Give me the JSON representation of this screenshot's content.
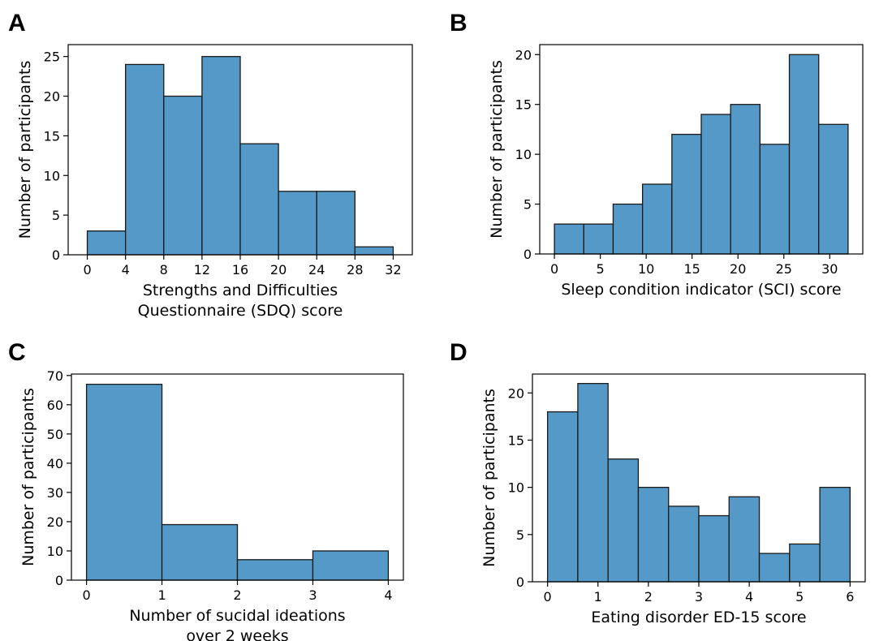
{
  "chart_data": [
    {
      "panel": "A",
      "type": "bar",
      "bin_edges": [
        0,
        4,
        8,
        12,
        16,
        20,
        24,
        28,
        32
      ],
      "values": [
        3,
        24,
        20,
        25,
        14,
        8,
        8,
        1
      ],
      "xlabel": [
        "Strengths and Difficulties",
        "Questionnaire (SDQ) score"
      ],
      "ylabel": "Number of participants",
      "xticks": [
        0,
        4,
        8,
        12,
        16,
        20,
        24,
        28,
        32
      ],
      "yticks": [
        0,
        5,
        10,
        15,
        20,
        25
      ],
      "xlim": [
        -2,
        34
      ],
      "ylim": [
        0,
        26.5
      ],
      "color": "#5499c7"
    },
    {
      "panel": "B",
      "type": "bar",
      "bin_edges": [
        0,
        3.2,
        6.4,
        9.6,
        12.8,
        16,
        19.2,
        22.4,
        25.6,
        28.8,
        32
      ],
      "values": [
        3,
        3,
        5,
        7,
        12,
        14,
        15,
        11,
        20,
        13
      ],
      "xlabel": [
        "Sleep condition indicator (SCI) score"
      ],
      "ylabel": "Number of participants",
      "xticks": [
        0,
        5,
        10,
        15,
        20,
        25,
        30
      ],
      "yticks": [
        0,
        5,
        10,
        15,
        20
      ],
      "xlim": [
        -1.6,
        33.6
      ],
      "ylim": [
        0,
        21
      ],
      "color": "#5499c7"
    },
    {
      "panel": "C",
      "type": "bar",
      "bin_edges": [
        0,
        1,
        2,
        3,
        4
      ],
      "values": [
        67,
        19,
        7,
        10
      ],
      "xlabel": [
        "Number of sucidal ideations",
        "over 2 weeks"
      ],
      "ylabel": "Number of participants",
      "xticks": [
        0,
        1,
        2,
        3,
        4
      ],
      "yticks": [
        0,
        10,
        20,
        30,
        40,
        50,
        60,
        70
      ],
      "xlim": [
        -0.2,
        4.2
      ],
      "ylim": [
        0,
        70.5
      ],
      "color": "#5499c7"
    },
    {
      "panel": "D",
      "type": "bar",
      "bin_edges": [
        0,
        0.6,
        1.2,
        1.8,
        2.4,
        3.0,
        3.6,
        4.2,
        4.8,
        5.4,
        6.0
      ],
      "values": [
        18,
        21,
        13,
        10,
        8,
        7,
        9,
        3,
        4,
        10
      ],
      "xlabel": [
        "Eating disorder ED-15 score"
      ],
      "ylabel": "Number of participants",
      "xticks": [
        0,
        1,
        2,
        3,
        4,
        5,
        6
      ],
      "yticks": [
        0,
        5,
        10,
        15,
        20
      ],
      "xlim": [
        -0.3,
        6.3
      ],
      "ylim": [
        0,
        22
      ],
      "color": "#5499c7"
    }
  ]
}
